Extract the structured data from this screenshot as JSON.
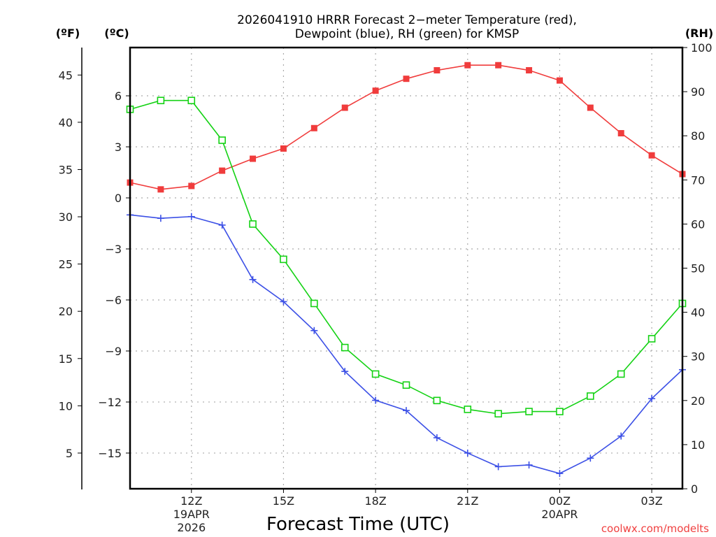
{
  "chart_data": {
    "type": "line",
    "title_lines": [
      "2026041910 HRRR Forecast 2−meter Temperature (red),",
      "Dewpoint (blue), RH (green) for KMSP"
    ],
    "xlabel": "Forecast Time (UTC)",
    "credit": "coolwx.com/modelts",
    "axes": {
      "fahrenheit": {
        "label": "(ºF)",
        "ticks": [
          5,
          10,
          15,
          20,
          25,
          30,
          35,
          40,
          45
        ],
        "tick_labels": [
          "5",
          "10",
          "15",
          "20",
          "25",
          "30",
          "35",
          "40",
          "45"
        ]
      },
      "celsius": {
        "label": "(ºC)",
        "ticks": [
          -15,
          -12,
          -9,
          -6,
          -3,
          0,
          3,
          6
        ],
        "tick_labels": [
          "−15",
          "−12",
          "−9",
          "−6",
          "−3",
          "0",
          "3",
          "6"
        ],
        "ylim": [
          -17.2,
          8.8
        ]
      },
      "rh": {
        "label": "(RH)",
        "ticks": [
          0,
          10,
          20,
          30,
          40,
          50,
          60,
          70,
          80,
          90,
          100
        ],
        "tick_labels": [
          "0",
          "10",
          "20",
          "30",
          "40",
          "50",
          "60",
          "70",
          "80",
          "90",
          "100"
        ],
        "ylim": [
          0,
          100
        ]
      }
    },
    "x": {
      "start_hour": 10,
      "hours": [
        10,
        11,
        12,
        13,
        14,
        15,
        16,
        17,
        18,
        19,
        20,
        21,
        22,
        23,
        24,
        25,
        26,
        27,
        28
      ],
      "xlim": [
        10,
        28
      ],
      "ticks": [
        {
          "hour": 12,
          "lines": [
            "12Z",
            "19APR",
            "2026"
          ]
        },
        {
          "hour": 15,
          "lines": [
            "15Z"
          ]
        },
        {
          "hour": 18,
          "lines": [
            "18Z"
          ]
        },
        {
          "hour": 21,
          "lines": [
            "21Z"
          ]
        },
        {
          "hour": 24,
          "lines": [
            "00Z",
            "20APR"
          ]
        },
        {
          "hour": 27,
          "lines": [
            "03Z"
          ]
        }
      ]
    },
    "series": [
      {
        "name": "Temperature",
        "axis": "celsius",
        "color": "#f03c3c",
        "marker": "filled-square",
        "values": [
          0.9,
          0.5,
          0.7,
          1.6,
          2.3,
          2.9,
          4.1,
          5.3,
          6.3,
          7.0,
          7.5,
          7.8,
          7.8,
          7.5,
          6.9,
          5.3,
          3.8,
          2.5,
          1.4
        ]
      },
      {
        "name": "Dewpoint",
        "axis": "celsius",
        "color": "#3c50e6",
        "marker": "plus",
        "values": [
          -1.0,
          -1.2,
          -1.1,
          -1.6,
          -4.8,
          -6.1,
          -7.8,
          -10.2,
          -11.9,
          -12.5,
          -14.1,
          -15.0,
          -15.8,
          -15.7,
          -16.2,
          -15.3,
          -14.0,
          -11.8,
          -10.1
        ]
      },
      {
        "name": "RH",
        "axis": "rh",
        "color": "#14d214",
        "marker": "open-square",
        "values": [
          86,
          88,
          88,
          79,
          60,
          52,
          42,
          32,
          26,
          23.5,
          20,
          18,
          17,
          17.5,
          17.5,
          21,
          26,
          34,
          42
        ]
      }
    ]
  }
}
